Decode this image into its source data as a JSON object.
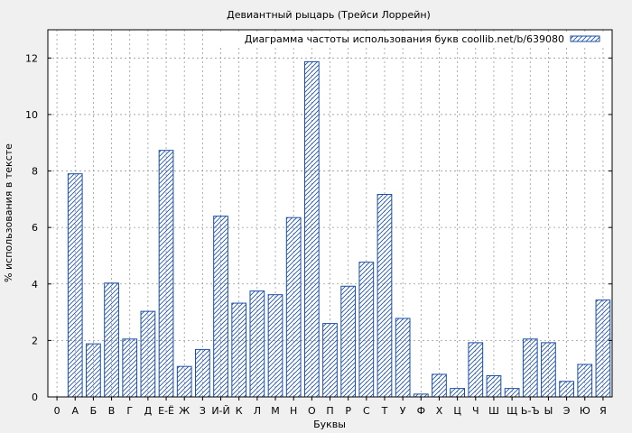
{
  "chart_data": {
    "type": "bar",
    "title": "Девиантный рыцарь (Трейси Лоррейн)",
    "xlabel": "Буквы",
    "ylabel": "% использования в тексте",
    "legend": {
      "label": "Диаграмма частоты использования букв coollib.net/b/639080",
      "placement": "top-right"
    },
    "ylim": [
      0,
      13
    ],
    "yticks": [
      0,
      2,
      4,
      6,
      8,
      10,
      12
    ],
    "grid": true,
    "colors": {
      "bar_stroke": "#1a4fa8",
      "hatch": "#1a4fa8",
      "plot_bg": "#ffffff",
      "page_bg": "#f0f0f0",
      "grid": "#999999"
    },
    "categories": [
      "0",
      "А",
      "Б",
      "В",
      "Г",
      "Д",
      "Е-Ё",
      "Ж",
      "З",
      "И-Й",
      "К",
      "Л",
      "М",
      "Н",
      "О",
      "П",
      "Р",
      "С",
      "Т",
      "У",
      "Ф",
      "Х",
      "Ц",
      "Ч",
      "Ш",
      "Щ",
      "Ь-Ъ",
      "Ы",
      "Э",
      "Ю",
      "Я"
    ],
    "values": [
      0,
      7.9,
      1.88,
      4.03,
      2.05,
      3.03,
      8.73,
      1.08,
      1.68,
      6.4,
      3.32,
      3.75,
      3.62,
      6.35,
      11.87,
      2.6,
      3.92,
      4.77,
      7.17,
      2.78,
      0.1,
      0.8,
      0.3,
      1.92,
      0.75,
      0.3,
      2.05,
      1.92,
      0.55,
      1.15,
      3.43
    ]
  }
}
